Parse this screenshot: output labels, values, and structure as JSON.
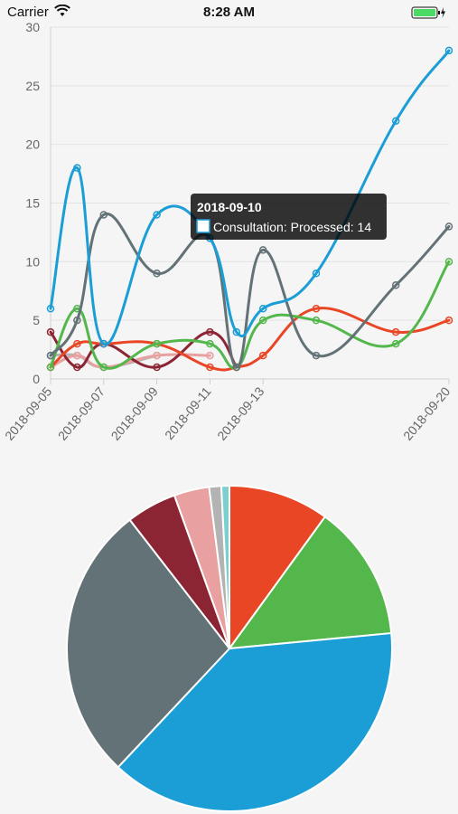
{
  "status_bar": {
    "carrier": "Carrier",
    "time": "8:28 AM"
  },
  "chart_data": [
    {
      "type": "line",
      "x": [
        "2018-09-05",
        "2018-09-06",
        "2018-09-07",
        "2018-09-08",
        "2018-09-09",
        "2018-09-10",
        "2018-09-11",
        "2018-09-12",
        "2018-09-13",
        "2018-09-14",
        "2018-09-15",
        "2018-09-16",
        "2018-09-17",
        "2018-09-18",
        "2018-09-19",
        "2018-09-20"
      ],
      "x_tick_labels": [
        "2018-09-05",
        "2018-09-07",
        "2018-09-09",
        "2018-09-11",
        "2018-09-13",
        "2018-09-20"
      ],
      "ylim": [
        0,
        30
      ],
      "y_ticks": [
        0,
        5,
        10,
        15,
        20,
        25,
        30
      ],
      "grid": true,
      "series": [
        {
          "color": "#1b9dd6",
          "points": [
            [
              "2018-09-05",
              6
            ],
            [
              "2018-09-06",
              18
            ],
            [
              "2018-09-07",
              3
            ],
            [
              "2018-09-09",
              14
            ],
            [
              "2018-09-11",
              12
            ],
            [
              "2018-09-12",
              4
            ],
            [
              "2018-09-13",
              6
            ],
            [
              "2018-09-15",
              9
            ],
            [
              "2018-09-18",
              22
            ],
            [
              "2018-09-20",
              28
            ]
          ]
        },
        {
          "color": "#627277",
          "points": [
            [
              "2018-09-05",
              2
            ],
            [
              "2018-09-06",
              5
            ],
            [
              "2018-09-07",
              14
            ],
            [
              "2018-09-09",
              9
            ],
            [
              "2018-09-11",
              12
            ],
            [
              "2018-09-12",
              1
            ],
            [
              "2018-09-13",
              11
            ],
            [
              "2018-09-15",
              2
            ],
            [
              "2018-09-18",
              8
            ],
            [
              "2018-09-20",
              13
            ]
          ]
        },
        {
          "color": "#53b74c",
          "points": [
            [
              "2018-09-05",
              1
            ],
            [
              "2018-09-06",
              6
            ],
            [
              "2018-09-07",
              1
            ],
            [
              "2018-09-09",
              3
            ],
            [
              "2018-09-11",
              3
            ],
            [
              "2018-09-12",
              1
            ],
            [
              "2018-09-13",
              5
            ],
            [
              "2018-09-15",
              5
            ],
            [
              "2018-09-18",
              3
            ],
            [
              "2018-09-20",
              10
            ]
          ]
        },
        {
          "color": "#e84624",
          "points": [
            [
              "2018-09-05",
              1
            ],
            [
              "2018-09-06",
              3
            ],
            [
              "2018-09-07",
              3
            ],
            [
              "2018-09-09",
              3
            ],
            [
              "2018-09-11",
              1
            ],
            [
              "2018-09-12",
              1
            ],
            [
              "2018-09-13",
              2
            ],
            [
              "2018-09-15",
              6
            ],
            [
              "2018-09-18",
              4
            ],
            [
              "2018-09-20",
              5
            ]
          ]
        },
        {
          "color": "#8b2534",
          "points": [
            [
              "2018-09-05",
              4
            ],
            [
              "2018-09-06",
              1
            ],
            [
              "2018-09-07",
              3
            ],
            [
              "2018-09-09",
              1
            ],
            [
              "2018-09-11",
              4
            ],
            [
              "2018-09-12",
              1
            ]
          ]
        },
        {
          "color": "#e8a0a0",
          "points": [
            [
              "2018-09-05",
              1
            ],
            [
              "2018-09-06",
              2
            ],
            [
              "2018-09-07",
              1
            ],
            [
              "2018-09-09",
              2
            ],
            [
              "2018-09-11",
              2
            ]
          ]
        },
        {
          "color": "#b3b3b3",
          "points": [
            [
              "2018-09-05",
              2
            ],
            [
              "2018-09-06",
              2
            ],
            [
              "2018-09-07",
              1
            ],
            [
              "2018-09-09",
              2
            ]
          ]
        }
      ],
      "tooltip": {
        "title": "2018-09-10",
        "label": "Consultation: Processed: 14",
        "swatch_color": "#1b9dd6"
      }
    },
    {
      "type": "pie",
      "slices": [
        {
          "value": 10.0,
          "color": "#e84624"
        },
        {
          "value": 13.5,
          "color": "#53b74c"
        },
        {
          "value": 38.5,
          "color": "#1b9dd6"
        },
        {
          "value": 27.5,
          "color": "#627277"
        },
        {
          "value": 5.0,
          "color": "#8b2534"
        },
        {
          "value": 3.5,
          "color": "#e8a0a0"
        },
        {
          "value": 1.2,
          "color": "#b3b3b3"
        },
        {
          "value": 0.8,
          "color": "#7ccfcf"
        }
      ]
    }
  ]
}
